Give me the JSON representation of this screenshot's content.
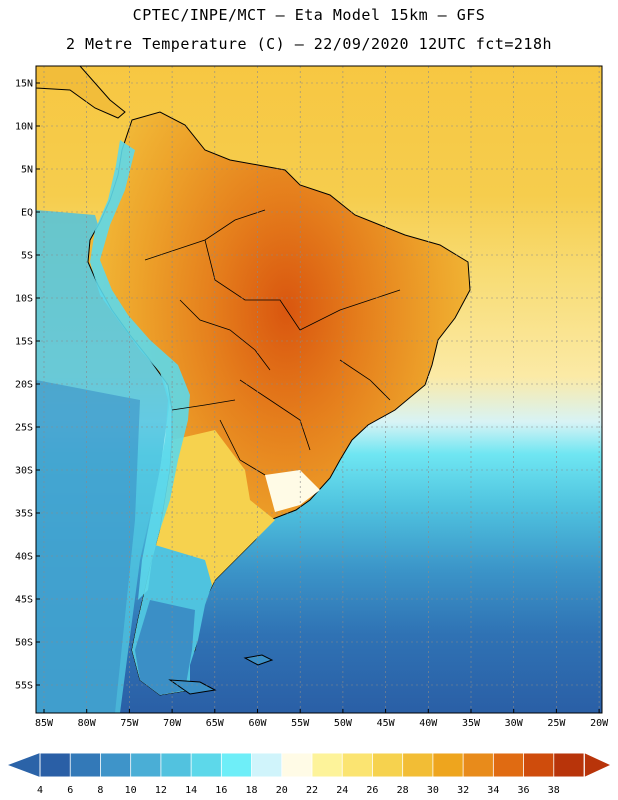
{
  "header": {
    "title_line1": "CPTEC/INPE/MCT –  Eta Model 15km – GFS",
    "title_line2": "2 Metre Temperature (C) – 22/09/2020 12UTC fct=218h"
  },
  "axes": {
    "lat_labels": [
      "15N",
      "10N",
      "5N",
      "EQ",
      "5S",
      "10S",
      "15S",
      "20S",
      "25S",
      "30S",
      "35S",
      "40S",
      "45S",
      "50S",
      "55S"
    ],
    "lon_labels": [
      "85W",
      "80W",
      "75W",
      "70W",
      "65W",
      "60W",
      "55W",
      "50W",
      "45W",
      "40W",
      "35W",
      "30W",
      "25W",
      "20W"
    ]
  },
  "colorbar": {
    "labels": [
      "4",
      "6",
      "8",
      "10",
      "12",
      "14",
      "16",
      "18",
      "20",
      "22",
      "24",
      "26",
      "28",
      "30",
      "32",
      "34",
      "36",
      "38"
    ],
    "colors": [
      "#2a5fa6",
      "#3379b8",
      "#3e94c9",
      "#4aaed6",
      "#52c2df",
      "#5dd8ea",
      "#6eeef8",
      "#d0f4fb",
      "#fffbe6",
      "#fdf39a",
      "#fbe471",
      "#f6d24e",
      "#f2bd35",
      "#eea51e",
      "#e88b1b",
      "#e06b12",
      "#cf4c0c",
      "#b8340a"
    ],
    "left_arrow_color": "#2b63a8",
    "right_arrow_color": "#b8340a"
  },
  "map": {
    "ocean_warm_color": "#f7c742",
    "ocean_cold_color": "#2a60a8",
    "coastline_color": "#000000",
    "grid_color": "#8a8a8a"
  }
}
